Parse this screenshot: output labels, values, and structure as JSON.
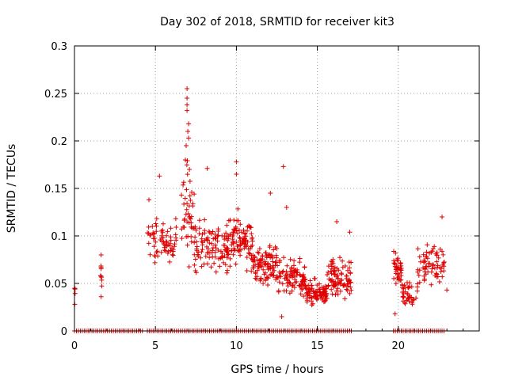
{
  "chart_data": {
    "type": "scatter",
    "title": "Day 302 of 2018, SRMTID for receiver kit3",
    "xlabel": "GPS time / hours",
    "ylabel": "SRMTID / TECUs",
    "xlim": [
      0,
      25
    ],
    "ylim": [
      0,
      0.3
    ],
    "xticks": [
      0,
      5,
      10,
      15,
      20
    ],
    "yticks": [
      0,
      0.05,
      0.1,
      0.15,
      0.2,
      0.25,
      0.3
    ],
    "ytick_labels": [
      "0",
      "0.05",
      "0.1",
      "0.15",
      "0.2",
      "0.25",
      "0.3"
    ],
    "grid": true,
    "marker": "+",
    "series_color": "#e00000",
    "clusters": [
      {
        "x0": 0.0,
        "x1": 0.05,
        "mean": 0.04,
        "spread": 0.008,
        "n": 4
      },
      {
        "x0": 1.6,
        "x1": 1.7,
        "mean": 0.06,
        "spread": 0.015,
        "n": 8
      },
      {
        "x0": 4.5,
        "x1": 6.3,
        "mean": 0.095,
        "spread": 0.02,
        "n": 70
      },
      {
        "x0": 6.6,
        "x1": 7.4,
        "mean": 0.12,
        "spread": 0.05,
        "n": 45
      },
      {
        "x0": 7.4,
        "x1": 9.6,
        "mean": 0.09,
        "spread": 0.025,
        "n": 110
      },
      {
        "x0": 9.6,
        "x1": 11.0,
        "mean": 0.095,
        "spread": 0.025,
        "n": 90
      },
      {
        "x0": 11.0,
        "x1": 12.5,
        "mean": 0.07,
        "spread": 0.02,
        "n": 100
      },
      {
        "x0": 12.5,
        "x1": 14.3,
        "mean": 0.055,
        "spread": 0.018,
        "n": 100
      },
      {
        "x0": 14.3,
        "x1": 15.6,
        "mean": 0.04,
        "spread": 0.012,
        "n": 90
      },
      {
        "x0": 15.6,
        "x1": 17.1,
        "mean": 0.055,
        "spread": 0.018,
        "n": 90
      },
      {
        "x0": 19.7,
        "x1": 20.2,
        "mean": 0.065,
        "spread": 0.015,
        "n": 40
      },
      {
        "x0": 20.2,
        "x1": 21.2,
        "mean": 0.04,
        "spread": 0.012,
        "n": 40
      },
      {
        "x0": 21.2,
        "x1": 22.9,
        "mean": 0.07,
        "spread": 0.018,
        "n": 70
      }
    ],
    "outliers": [
      {
        "x": 0.02,
        "y": 0.028
      },
      {
        "x": 1.65,
        "y": 0.08
      },
      {
        "x": 1.65,
        "y": 0.036
      },
      {
        "x": 4.6,
        "y": 0.138
      },
      {
        "x": 5.25,
        "y": 0.163
      },
      {
        "x": 6.95,
        "y": 0.255
      },
      {
        "x": 6.95,
        "y": 0.245
      },
      {
        "x": 6.95,
        "y": 0.238
      },
      {
        "x": 6.95,
        "y": 0.232
      },
      {
        "x": 7.05,
        "y": 0.218
      },
      {
        "x": 7.0,
        "y": 0.21
      },
      {
        "x": 7.05,
        "y": 0.203
      },
      {
        "x": 6.9,
        "y": 0.195
      },
      {
        "x": 6.85,
        "y": 0.18
      },
      {
        "x": 7.1,
        "y": 0.17
      },
      {
        "x": 8.2,
        "y": 0.171
      },
      {
        "x": 10.0,
        "y": 0.178
      },
      {
        "x": 10.0,
        "y": 0.165
      },
      {
        "x": 12.1,
        "y": 0.145
      },
      {
        "x": 12.9,
        "y": 0.173
      },
      {
        "x": 13.1,
        "y": 0.13
      },
      {
        "x": 12.8,
        "y": 0.015
      },
      {
        "x": 16.2,
        "y": 0.115
      },
      {
        "x": 17.0,
        "y": 0.104
      },
      {
        "x": 19.8,
        "y": 0.018
      },
      {
        "x": 22.7,
        "y": 0.12
      },
      {
        "x": 23.0,
        "y": 0.043
      }
    ],
    "zero_segments": [
      [
        0.0,
        4.3
      ],
      [
        4.5,
        17.1
      ],
      [
        19.7,
        22.9
      ]
    ],
    "zero_spacing": 0.12
  }
}
